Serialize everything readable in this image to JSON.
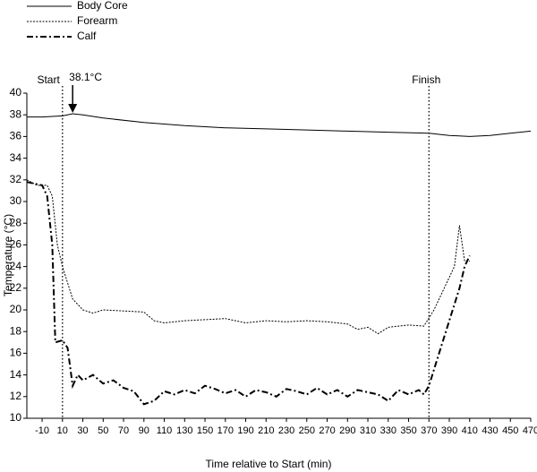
{
  "chart_data": {
    "type": "line",
    "xlabel": "Time relative to Start (min)",
    "ylabel": "Temperature (°C)",
    "xlim": [
      -25,
      470
    ],
    "xticks": [
      -10,
      10,
      30,
      50,
      70,
      90,
      110,
      130,
      150,
      170,
      190,
      210,
      230,
      250,
      270,
      290,
      310,
      330,
      350,
      370,
      390,
      410,
      430,
      450,
      470
    ],
    "ylim": [
      10,
      40
    ],
    "yticks": [
      10,
      12,
      14,
      16,
      18,
      20,
      22,
      24,
      26,
      28,
      30,
      32,
      34,
      36,
      38,
      40
    ],
    "vlines": [
      {
        "x": 10,
        "label": "Start"
      },
      {
        "x": 370,
        "label": "Finish"
      }
    ],
    "annotations": [
      {
        "text": "38.1°C",
        "x": 20,
        "y": 38.1
      }
    ],
    "series": [
      {
        "name": "Body Core",
        "color": "#000000",
        "linestyle": "solid",
        "x": [
          -25,
          -10,
          10,
          20,
          30,
          50,
          90,
          130,
          170,
          210,
          250,
          290,
          330,
          370,
          390,
          410,
          430,
          450,
          470
        ],
        "values": [
          37.8,
          37.8,
          37.9,
          38.1,
          38.0,
          37.7,
          37.3,
          37.0,
          36.8,
          36.7,
          36.6,
          36.5,
          36.4,
          36.3,
          36.1,
          36.0,
          36.1,
          36.3,
          36.5
        ]
      },
      {
        "name": "Forearm",
        "color": "#000000",
        "linestyle": "dotted",
        "x": [
          -25,
          -15,
          -5,
          0,
          5,
          10,
          20,
          30,
          40,
          50,
          70,
          90,
          100,
          110,
          130,
          150,
          170,
          190,
          210,
          230,
          250,
          270,
          290,
          300,
          310,
          320,
          330,
          350,
          365,
          375,
          385,
          395,
          400,
          405,
          410
        ],
        "values": [
          32,
          31.5,
          31.5,
          30.5,
          26,
          24,
          21,
          20,
          19.7,
          20,
          19.9,
          19.8,
          19,
          18.8,
          19,
          19.1,
          19.2,
          18.8,
          19,
          18.9,
          19,
          18.9,
          18.7,
          18.2,
          18.4,
          17.8,
          18.4,
          18.6,
          18.5,
          20,
          22,
          24,
          27.8,
          24.5,
          24.5
        ]
      },
      {
        "name": "Calf",
        "color": "#000000",
        "linestyle": "dashdot",
        "x": [
          -25,
          -10,
          -5,
          0,
          3,
          10,
          15,
          20,
          25,
          30,
          40,
          50,
          60,
          70,
          80,
          90,
          100,
          110,
          120,
          130,
          140,
          150,
          160,
          170,
          180,
          190,
          200,
          210,
          220,
          230,
          240,
          250,
          260,
          270,
          280,
          290,
          300,
          310,
          320,
          330,
          340,
          350,
          360,
          365,
          370,
          380,
          390,
          400,
          405,
          410
        ],
        "values": [
          31.8,
          31.5,
          30.5,
          26,
          17,
          17.2,
          16.5,
          13,
          14,
          13.5,
          14,
          13.2,
          13.5,
          12.8,
          12.5,
          11.3,
          11.6,
          12.5,
          12.2,
          12.6,
          12.3,
          13,
          12.7,
          12.3,
          12.6,
          12,
          12.6,
          12.4,
          12,
          12.7,
          12.5,
          12.2,
          12.8,
          12.2,
          12.6,
          12,
          12.6,
          12.4,
          12.2,
          11.6,
          12.6,
          12.2,
          12.6,
          12.2,
          13,
          16,
          19,
          22,
          24,
          25
        ]
      }
    ]
  }
}
